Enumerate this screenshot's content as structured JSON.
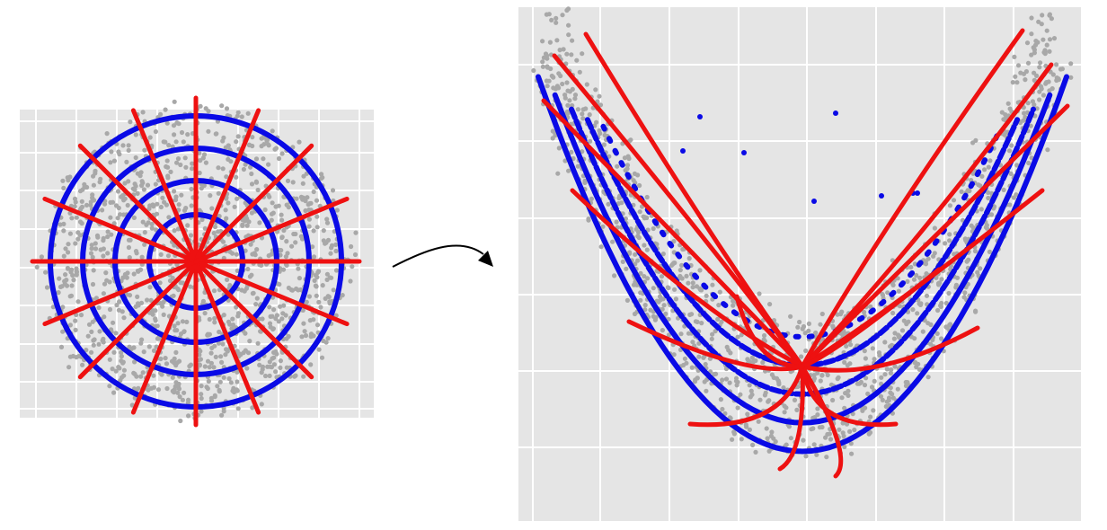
{
  "figure": {
    "description_free": true,
    "colors": {
      "panel_bg": "#e5e5e5",
      "grid": "#ffffff",
      "samples": "#a8a8a8",
      "contours": "#0a0ae6",
      "rays": "#ee1111",
      "arrow": "#000000"
    },
    "left_panel": {
      "kind": "source-latent-space",
      "rings": 4,
      "rays": 16,
      "sample_count": 1400
    },
    "right_panel": {
      "kind": "warped-target-space",
      "contours": 5,
      "rays": 16,
      "sample_count": 1400
    },
    "arrow": {
      "icon": "curved-arrow-icon"
    }
  }
}
